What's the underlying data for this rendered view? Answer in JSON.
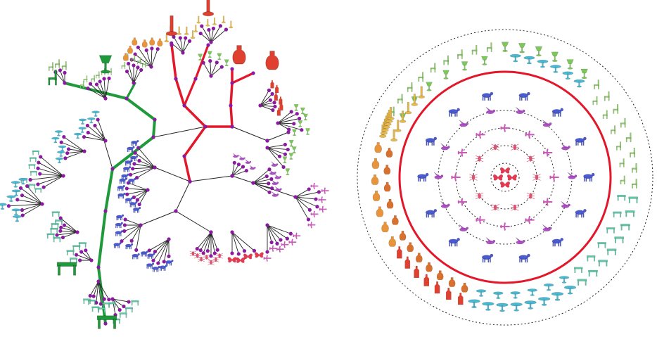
{
  "colors": {
    "highlight_green": "#1f9a3a",
    "highlight_red": "#e4162a",
    "branch": "#222222",
    "node": "#8a1aa0",
    "ring_dotted": "#222222"
  },
  "categories": [
    {
      "name": "lamp",
      "color": "#7cc85a"
    },
    {
      "name": "chair",
      "color": "#8fd06a"
    },
    {
      "name": "table",
      "color": "#5ec8a8"
    },
    {
      "name": "round-table",
      "color": "#4ab8d0"
    },
    {
      "name": "vase",
      "color": "#e8943c"
    },
    {
      "name": "jug",
      "color": "#d8702e"
    },
    {
      "name": "bottle",
      "color": "#e04030"
    },
    {
      "name": "candle",
      "color": "#e8b84a"
    },
    {
      "name": "quadruped",
      "color": "#4a5ad0"
    },
    {
      "name": "bird",
      "color": "#b050c8"
    },
    {
      "name": "plane",
      "color": "#c85ab8"
    },
    {
      "name": "insect",
      "color": "#e05070"
    },
    {
      "name": "butterfly",
      "color": "#e83850"
    }
  ]
}
